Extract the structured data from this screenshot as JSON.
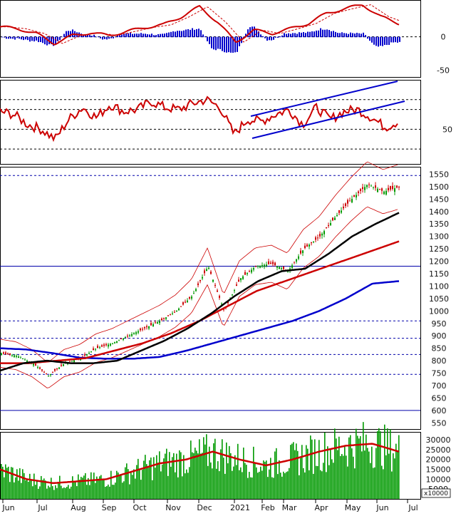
{
  "chart_data": [
    {
      "panel": "macd",
      "type": "line",
      "y_ticks": [
        0,
        -50
      ],
      "y_tick_labels": [
        "0",
        "-50"
      ],
      "ylim": [
        -60,
        55
      ],
      "grid": "dashed reference at 0",
      "colors": {
        "line": "#cc0000",
        "signal": "#cc0000",
        "hist": "#0000cc"
      },
      "x_months": [
        "Jun",
        "Jul",
        "Aug",
        "Sep",
        "Oct",
        "Nov",
        "Dec",
        "2021",
        "Feb",
        "Mar",
        "Apr",
        "May",
        "Jun",
        "Jul"
      ],
      "macd_approx": [
        15,
        12,
        5,
        -10,
        2,
        6,
        2,
        8,
        14,
        18,
        30,
        45,
        22,
        -8,
        10,
        5,
        12,
        20,
        35,
        42,
        48,
        30,
        20
      ]
    },
    {
      "panel": "rsi",
      "type": "line",
      "y_ticks": [
        50
      ],
      "y_tick_labels": [
        "50"
      ],
      "ylim": [
        15,
        100
      ],
      "reference_lines": [
        80,
        70,
        50,
        30
      ],
      "colors": {
        "rsi": "#cc0000",
        "channel": "#0000cc"
      },
      "rsi_approx": [
        68,
        65,
        55,
        50,
        40,
        60,
        72,
        62,
        75,
        68,
        70,
        78,
        72,
        70,
        76,
        80,
        72,
        45,
        60,
        58,
        65,
        70,
        55,
        72,
        60,
        68,
        70,
        62,
        52,
        58
      ]
    },
    {
      "panel": "price",
      "type": "line",
      "y_ticks": [
        550,
        600,
        650,
        700,
        750,
        800,
        850,
        900,
        950,
        1000,
        1050,
        1100,
        1150,
        1200,
        1250,
        1300,
        1350,
        1400,
        1450,
        1500,
        1550
      ],
      "y_tick_labels": [
        "550",
        "600",
        "650",
        "700",
        "750",
        "800",
        "850",
        "900",
        "950",
        "1000",
        "1050",
        "1100",
        "1150",
        "1200",
        "1250",
        "1300",
        "1350",
        "1400",
        "1450",
        "1500",
        "1550"
      ],
      "ylim": [
        525,
        1580
      ],
      "horizontal_levels": {
        "solid": [
          1180,
          600
        ],
        "dashed": [
          1545,
          960,
          890,
          825,
          745
        ]
      },
      "series": [
        {
          "role": "close",
          "color": "#009900",
          "values": [
            830,
            820,
            790,
            740,
            790,
            810,
            850,
            870,
            900,
            930,
            960,
            1000,
            1060,
            1180,
            1000,
            1130,
            1180,
            1190,
            1160,
            1250,
            1300,
            1380,
            1450,
            1510,
            1480,
            1500
          ]
        },
        {
          "role": "ma_short",
          "color": "#000000",
          "values": [
            760,
            790,
            800,
            790,
            790,
            800,
            840,
            880,
            930,
            990,
            1060,
            1120,
            1160,
            1170,
            1230,
            1300,
            1350,
            1395
          ]
        },
        {
          "role": "ma_mid",
          "color": "#cc0000",
          "values": [
            790,
            790,
            800,
            810,
            840,
            870,
            910,
            960,
            1020,
            1080,
            1120,
            1160,
            1200,
            1240,
            1280
          ]
        },
        {
          "role": "ma_long",
          "color": "#0000cc",
          "values": [
            850,
            845,
            830,
            812,
            808,
            808,
            815,
            840,
            870,
            900,
            930,
            960,
            1000,
            1050,
            1110,
            1120
          ]
        }
      ]
    },
    {
      "panel": "volume",
      "type": "bar",
      "y_ticks": [
        5000,
        10000,
        15000,
        20000,
        25000,
        30000
      ],
      "y_tick_labels": [
        "5000",
        "10000",
        "15000",
        "20000",
        "25000",
        "30000"
      ],
      "ylim": [
        0,
        34000
      ],
      "scale_note": "x10000",
      "colors": {
        "bars": "#009900",
        "ma": "#cc0000"
      },
      "volume_ma_approx": [
        15000,
        10000,
        8000,
        9000,
        10000,
        14000,
        18000,
        20000,
        24000,
        20000,
        17000,
        20000,
        24000,
        27000,
        28000,
        24000
      ]
    }
  ],
  "axis": {
    "x_labels": [
      "Jun",
      "Jul",
      "Aug",
      "Sep",
      "Oct",
      "Nov",
      "Dec",
      "2021",
      "Feb",
      "Mar",
      "Apr",
      "May",
      "Jun",
      "Jul"
    ]
  }
}
